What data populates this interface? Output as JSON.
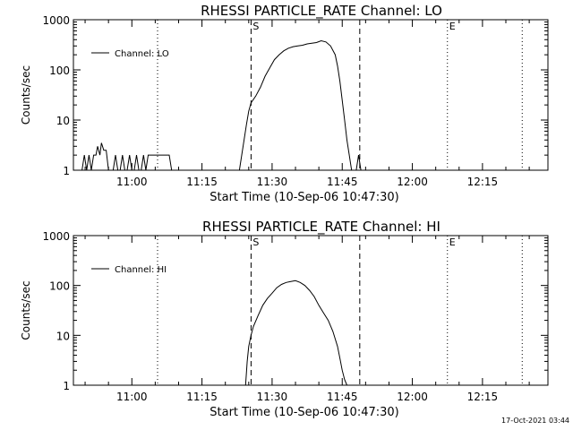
{
  "footer": {
    "timestamp": "17-Oct-2021 03:44"
  },
  "chart_data": [
    {
      "type": "line",
      "title": "RHESSI PARTICLE_RATE Channel: LO",
      "xlabel": "Start Time (10-Sep-06 10:47:30)",
      "ylabel": "Counts/sec",
      "x_unit": "time (UT)",
      "xlim": [
        "10:47:30",
        "12:29:00"
      ],
      "ylim": [
        1,
        1000
      ],
      "yscale": "log",
      "x_ticks": [
        "11:00",
        "11:15",
        "11:30",
        "11:45",
        "12:00",
        "12:15"
      ],
      "y_ticks": [
        "1",
        "10",
        "100",
        "1000"
      ],
      "legend": {
        "position": "top-left",
        "entries": [
          "Channel: LO"
        ]
      },
      "markers": [
        {
          "label": "S",
          "time": "11:25:30",
          "style": "dashed"
        },
        {
          "label": "",
          "time": "11:48:45",
          "style": "dashed"
        },
        {
          "label": "E",
          "time": "12:07:30",
          "style": "dotted"
        },
        {
          "label": "",
          "time": "11:05:30",
          "style": "dotted"
        },
        {
          "label": "",
          "time": "12:23:30",
          "style": "dotted"
        }
      ],
      "series": [
        {
          "name": "Channel: LO",
          "x": [
            "10:49:20",
            "10:49:50",
            "10:50:20",
            "10:50:50",
            "10:51:20",
            "10:51:50",
            "10:52:20",
            "10:52:40",
            "10:53:10",
            "10:53:30",
            "10:54:00",
            "10:54:30",
            "10:55:00",
            "10:55:30",
            "10:56:00",
            "10:56:30",
            "10:57:00",
            "10:57:30",
            "10:58:00",
            "10:58:30",
            "10:59:00",
            "10:59:30",
            "11:00:00",
            "11:00:30",
            "11:01:00",
            "11:01:30",
            "11:02:00",
            "11:02:30",
            "11:03:00",
            "11:03:30",
            "11:04:00",
            "11:07:30",
            "11:08:00",
            "11:08:30",
            "11:23:00",
            "11:23:30",
            "11:24:00",
            "11:24:30",
            "11:25:00",
            "11:25:30",
            "11:26:30",
            "11:27:30",
            "11:28:30",
            "11:29:30",
            "11:30:30",
            "11:31:30",
            "11:32:30",
            "11:33:30",
            "11:34:30",
            "11:35:30",
            "11:36:30",
            "11:37:30",
            "11:38:30",
            "11:39:30",
            "11:40:30",
            "11:41:30",
            "11:42:30",
            "11:43:30",
            "11:44:00",
            "11:44:30",
            "11:45:00",
            "11:45:30",
            "11:46:00",
            "11:46:30",
            "11:47:00",
            "11:48:00",
            "11:48:30",
            "11:49:00"
          ],
          "y": [
            1,
            2,
            1,
            2,
            1,
            2,
            2,
            3,
            2,
            3.5,
            2.5,
            2.5,
            1,
            1,
            1,
            2,
            1,
            1,
            2,
            1,
            1,
            2,
            1,
            1,
            2,
            1,
            1,
            2,
            1,
            2,
            2,
            2,
            2,
            1,
            1,
            2,
            4,
            8,
            15,
            22,
            30,
            45,
            75,
            110,
            160,
            200,
            240,
            270,
            290,
            300,
            310,
            330,
            340,
            350,
            380,
            360,
            300,
            200,
            120,
            60,
            25,
            10,
            4,
            2,
            1,
            1,
            2,
            1
          ]
        }
      ]
    },
    {
      "type": "line",
      "title": "RHESSI PARTICLE_RATE Channel: HI",
      "xlabel": "Start Time (10-Sep-06 10:47:30)",
      "ylabel": "Counts/sec",
      "x_unit": "time (UT)",
      "xlim": [
        "10:47:30",
        "12:29:00"
      ],
      "ylim": [
        1,
        1000
      ],
      "yscale": "log",
      "x_ticks": [
        "11:00",
        "11:15",
        "11:30",
        "11:45",
        "12:00",
        "12:15"
      ],
      "y_ticks": [
        "1",
        "10",
        "100",
        "1000"
      ],
      "legend": {
        "position": "top-left",
        "entries": [
          "Channel: HI"
        ]
      },
      "markers": [
        {
          "label": "S",
          "time": "11:25:30",
          "style": "dashed"
        },
        {
          "label": "",
          "time": "11:48:45",
          "style": "dashed"
        },
        {
          "label": "E",
          "time": "12:07:30",
          "style": "dotted"
        },
        {
          "label": "",
          "time": "11:05:30",
          "style": "dotted"
        },
        {
          "label": "",
          "time": "12:23:30",
          "style": "dotted"
        }
      ],
      "series": [
        {
          "name": "Channel: HI",
          "x": [
            "11:24:20",
            "11:24:40",
            "11:25:00",
            "11:25:30",
            "11:26:00",
            "11:27:00",
            "11:28:00",
            "11:29:00",
            "11:30:00",
            "11:31:00",
            "11:32:00",
            "11:33:00",
            "11:34:00",
            "11:35:00",
            "11:36:00",
            "11:37:00",
            "11:38:00",
            "11:39:00",
            "11:40:00",
            "11:41:00",
            "11:42:00",
            "11:43:00",
            "11:44:00",
            "11:44:30",
            "11:45:00",
            "11:45:30",
            "11:46:00"
          ],
          "y": [
            1,
            3,
            6,
            10,
            15,
            25,
            40,
            55,
            70,
            90,
            105,
            115,
            120,
            125,
            115,
            100,
            80,
            60,
            40,
            28,
            20,
            12,
            6,
            3.5,
            2,
            1.3,
            1
          ]
        }
      ]
    }
  ]
}
